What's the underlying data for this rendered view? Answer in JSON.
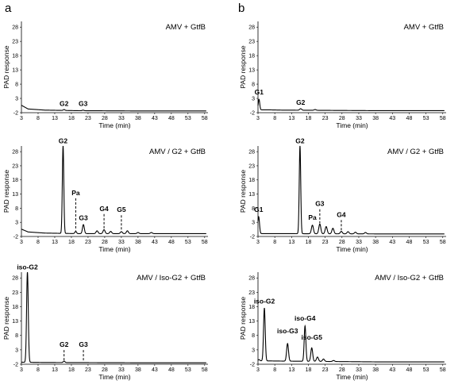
{
  "figure": {
    "panel_letters": [
      "a",
      "b"
    ]
  },
  "chart_data": [
    {
      "type": "line",
      "panel": "a",
      "title": "AMV + GtfB",
      "xlabel": "Time (min)",
      "ylabel": "PAD response",
      "xlim": [
        3,
        59
      ],
      "ylim": [
        -2,
        30
      ],
      "xticks": [
        3,
        8,
        13,
        18,
        23,
        28,
        33,
        38,
        43,
        48,
        53,
        58
      ],
      "yticks": [
        -2,
        3,
        8,
        13,
        18,
        23,
        28
      ],
      "baseline": [
        [
          3,
          0.6
        ],
        [
          5,
          -0.7
        ],
        [
          10,
          -1.1
        ],
        [
          20,
          -1.3
        ],
        [
          40,
          -1.4
        ],
        [
          58.5,
          -1.4
        ]
      ],
      "peaks": [
        [
          15.8,
          -0.9,
          0.25
        ],
        [
          21.5,
          -1.1,
          0.25
        ]
      ],
      "labels": [
        {
          "text": "G2",
          "x": 15.8,
          "y": -0.4,
          "dashed": false
        },
        {
          "text": "G3",
          "x": 21.5,
          "y": -0.4,
          "dashed": false
        }
      ]
    },
    {
      "type": "line",
      "panel": "a",
      "title": "AMV / G2 + GtfB",
      "xlabel": "Time (min)",
      "ylabel": "PAD response",
      "xlim": [
        3,
        59
      ],
      "ylim": [
        -2,
        30
      ],
      "xticks": [
        3,
        8,
        13,
        18,
        23,
        28,
        33,
        38,
        43,
        48,
        53,
        58
      ],
      "yticks": [
        -2,
        3,
        8,
        13,
        18,
        23,
        28
      ],
      "baseline": [
        [
          3,
          0.6
        ],
        [
          5,
          -0.4
        ],
        [
          10,
          -0.8
        ],
        [
          20,
          -1.0
        ],
        [
          40,
          -1.0
        ],
        [
          58.5,
          -1.0
        ]
      ],
      "peaks": [
        [
          15.5,
          30,
          0.22
        ],
        [
          19.3,
          -0.2,
          0.25
        ],
        [
          21.6,
          2.2,
          0.28
        ],
        [
          25.7,
          0,
          0.3
        ],
        [
          27.8,
          0.4,
          0.3
        ],
        [
          29.8,
          -0.2,
          0.3
        ],
        [
          33.0,
          -0.3,
          0.3
        ],
        [
          34.8,
          0,
          0.3
        ],
        [
          38,
          -0.6,
          0.3
        ],
        [
          42,
          -0.6,
          0.3
        ]
      ],
      "labels": [
        {
          "text": "G2",
          "x": 15.5,
          "y": 30.2,
          "dashed": false
        },
        {
          "text": "Pa",
          "x": 19.3,
          "y": 11.8,
          "dashed": true
        },
        {
          "text": "G3",
          "x": 21.6,
          "y": 2.9,
          "dashed": false
        },
        {
          "text": "G4",
          "x": 27.8,
          "y": 6.2,
          "dashed": true
        },
        {
          "text": "G5",
          "x": 33.0,
          "y": 5.8,
          "dashed": true
        }
      ]
    },
    {
      "type": "line",
      "panel": "a",
      "title": "AMV / Iso-G2 + GtfB",
      "xlabel": "Time (min)",
      "ylabel": "PAD response",
      "xlim": [
        3,
        59
      ],
      "ylim": [
        -2,
        30
      ],
      "xticks": [
        3,
        8,
        13,
        18,
        23,
        28,
        33,
        38,
        43,
        48,
        53,
        58
      ],
      "yticks": [
        -2,
        3,
        8,
        13,
        18,
        23,
        28
      ],
      "baseline": [
        [
          3,
          -1.3
        ],
        [
          10,
          -1.4
        ],
        [
          40,
          -1.5
        ],
        [
          58.5,
          -1.5
        ]
      ],
      "peaks": [
        [
          4.8,
          30,
          0.25
        ],
        [
          15.8,
          -0.9,
          0.25
        ]
      ],
      "labels": [
        {
          "text": "iso-G2",
          "x": 4.8,
          "y": 30.2,
          "dashed": false
        },
        {
          "text": "G2",
          "x": 15.8,
          "y": 3.2,
          "dashed": true
        },
        {
          "text": "G3",
          "x": 21.6,
          "y": 3.2,
          "dashed": true
        }
      ]
    },
    {
      "type": "line",
      "panel": "b",
      "title": "AMV + GtfB",
      "xlabel": "Time (min)",
      "ylabel": "PAD response",
      "xlim": [
        3,
        59
      ],
      "ylim": [
        -2,
        30
      ],
      "xticks": [
        3,
        8,
        13,
        18,
        23,
        28,
        33,
        38,
        43,
        48,
        53,
        58
      ],
      "yticks": [
        -2,
        3,
        8,
        13,
        18,
        23,
        28
      ],
      "baseline": [
        [
          3,
          -1.0
        ],
        [
          6,
          -1.0
        ],
        [
          10,
          -1.1
        ],
        [
          40,
          -1.3
        ],
        [
          58.5,
          -1.3
        ]
      ],
      "peaks": [
        [
          3.3,
          2.7,
          0.22
        ],
        [
          15.7,
          -0.6,
          0.3
        ],
        [
          20,
          -0.9,
          0.3
        ]
      ],
      "labels": [
        {
          "text": "G1",
          "x": 3.3,
          "y": 3.5,
          "dashed": false
        },
        {
          "text": "G2",
          "x": 15.7,
          "y": -0.1,
          "dashed": false
        }
      ]
    },
    {
      "type": "line",
      "panel": "b",
      "title": "AMV / G2 + GtfB",
      "xlabel": "Time (min)",
      "ylabel": "PAD response",
      "xlim": [
        3,
        59
      ],
      "ylim": [
        -2,
        30
      ],
      "xticks": [
        3,
        8,
        13,
        18,
        23,
        28,
        33,
        38,
        43,
        48,
        53,
        58
      ],
      "yticks": [
        -2,
        3,
        8,
        13,
        18,
        23,
        28
      ],
      "baseline": [
        [
          3,
          -1.0
        ],
        [
          10,
          -1.0
        ],
        [
          40,
          -1.1
        ],
        [
          58.5,
          -1.1
        ]
      ],
      "peaks": [
        [
          3.2,
          5,
          0.25
        ],
        [
          15.5,
          30,
          0.22
        ],
        [
          19.2,
          2.0,
          0.3
        ],
        [
          21.4,
          2.4,
          0.3
        ],
        [
          23.3,
          1.5,
          0.3
        ],
        [
          25.3,
          0.9,
          0.3
        ],
        [
          27.8,
          -0.2,
          0.3
        ],
        [
          29.8,
          -0.3,
          0.3
        ],
        [
          32,
          -0.5,
          0.3
        ],
        [
          35,
          -0.6,
          0.3
        ]
      ],
      "labels": [
        {
          "text": "G1",
          "x": 3.2,
          "y": 5.9,
          "dashed": false
        },
        {
          "text": "G2",
          "x": 15.5,
          "y": 30.2,
          "dashed": false
        },
        {
          "text": "Pa",
          "x": 19.2,
          "y": 3.0,
          "dashed": false
        },
        {
          "text": "G3",
          "x": 21.4,
          "y": 7.9,
          "dashed": true
        },
        {
          "text": "G4",
          "x": 27.8,
          "y": 4.1,
          "dashed": true
        }
      ]
    },
    {
      "type": "line",
      "panel": "b",
      "title": "AMV / Iso-G2 + GtfB",
      "xlabel": "Time (min)",
      "ylabel": "PAD response",
      "xlim": [
        3,
        59
      ],
      "ylim": [
        -2,
        30
      ],
      "xticks": [
        3,
        8,
        13,
        18,
        23,
        28,
        33,
        38,
        43,
        48,
        53,
        58
      ],
      "yticks": [
        -2,
        3,
        8,
        13,
        18,
        23,
        28
      ],
      "baseline": [
        [
          3,
          -0.8
        ],
        [
          10,
          -0.9
        ],
        [
          40,
          -1.2
        ],
        [
          58.5,
          -1.2
        ]
      ],
      "peaks": [
        [
          3.3,
          -0.4,
          0.25
        ],
        [
          4.9,
          17.5,
          0.25
        ],
        [
          11.8,
          5.2,
          0.28
        ],
        [
          17.0,
          11.3,
          0.25
        ],
        [
          19.0,
          3.7,
          0.28
        ],
        [
          20.7,
          0.5,
          0.3
        ],
        [
          22.5,
          -0.2,
          0.3
        ],
        [
          25.5,
          -0.7,
          0.3
        ]
      ],
      "labels": [
        {
          "text": "iso-G2",
          "x": 4.9,
          "y": 18.3,
          "dashed": false
        },
        {
          "text": "iso-G3",
          "x": 11.8,
          "y": 8.0,
          "dashed": false
        },
        {
          "text": "iso-G4",
          "x": 17.0,
          "y": 12.4,
          "dashed": false
        },
        {
          "text": "iso-G5",
          "x": 19.0,
          "y": 5.7,
          "dashed": false
        }
      ]
    }
  ]
}
